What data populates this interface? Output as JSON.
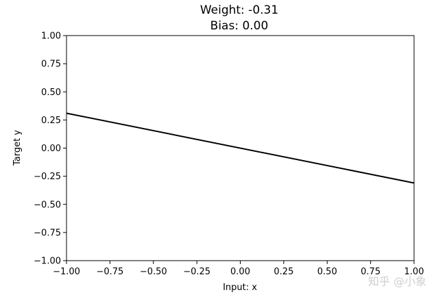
{
  "chart_data": {
    "type": "line",
    "title_lines": [
      "Weight: -0.31",
      "Bias: 0.00"
    ],
    "xlabel": "Input: x",
    "ylabel": "Target y",
    "xlim": [
      -1.0,
      1.0
    ],
    "ylim": [
      -1.0,
      1.0
    ],
    "xticks": [
      -1.0,
      -0.75,
      -0.5,
      -0.25,
      0.0,
      0.25,
      0.5,
      0.75,
      1.0
    ],
    "yticks": [
      -1.0,
      -0.75,
      -0.5,
      -0.25,
      0.0,
      0.25,
      0.5,
      0.75,
      1.0
    ],
    "xtick_labels": [
      "−1.00",
      "−0.75",
      "−0.50",
      "−0.25",
      "0.00",
      "0.25",
      "0.50",
      "0.75",
      "1.00"
    ],
    "ytick_labels": [
      "−1.00",
      "−0.75",
      "−0.50",
      "−0.25",
      "0.00",
      "0.25",
      "0.50",
      "0.75",
      "1.00"
    ],
    "grid": false,
    "series": [
      {
        "x": [
          -1.0,
          1.0
        ],
        "y": [
          0.31,
          -0.31
        ],
        "color": "#000000"
      }
    ]
  },
  "watermark": "知乎 @小象"
}
